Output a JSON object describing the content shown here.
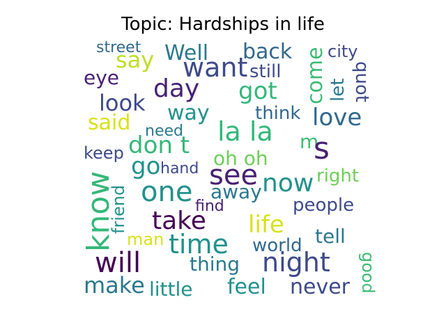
{
  "title": "Topic: Hardships in life",
  "words": [
    {
      "text": "street",
      "color": "#31688e"
    },
    {
      "text": "say",
      "color": "#bddf26"
    },
    {
      "text": "Well",
      "color": "#2a788e"
    },
    {
      "text": "back",
      "color": "#31688e"
    },
    {
      "text": "come",
      "color": "#3cbb75"
    },
    {
      "text": "city",
      "color": "#3e4a89"
    },
    {
      "text": "want",
      "color": "#3e4a89"
    },
    {
      "text": "still",
      "color": "#3e4a89"
    },
    {
      "text": "let",
      "color": "#2a788e"
    },
    {
      "text": "quot",
      "color": "#3e4a89"
    },
    {
      "text": "eye",
      "color": "#482173"
    },
    {
      "text": "day",
      "color": "#482173"
    },
    {
      "text": "got",
      "color": "#35b779"
    },
    {
      "text": "look",
      "color": "#3e4a89"
    },
    {
      "text": "love",
      "color": "#31688e"
    },
    {
      "text": "way",
      "color": "#21918c"
    },
    {
      "text": "think",
      "color": "#31688e"
    },
    {
      "text": "said",
      "color": "#d8e219"
    },
    {
      "text": "need",
      "color": "#2a788e"
    },
    {
      "text": "la la",
      "color": "#35b779"
    },
    {
      "text": "m",
      "color": "#3cbb75"
    },
    {
      "text": "s",
      "color": "#482173"
    },
    {
      "text": "don t",
      "color": "#35b779"
    },
    {
      "text": "keep",
      "color": "#3e4a89"
    },
    {
      "text": "oh oh",
      "color": "#6ece58"
    },
    {
      "text": "go",
      "color": "#21918c"
    },
    {
      "text": "hand",
      "color": "#3e4a89"
    },
    {
      "text": "see",
      "color": "#482173"
    },
    {
      "text": "right",
      "color": "#6ece58"
    },
    {
      "text": "know",
      "color": "#35b779"
    },
    {
      "text": "friend",
      "color": "#21918c"
    },
    {
      "text": "one",
      "color": "#21918c"
    },
    {
      "text": "away",
      "color": "#2a788e"
    },
    {
      "text": "now",
      "color": "#21918c"
    },
    {
      "text": "find",
      "color": "#482173"
    },
    {
      "text": "people",
      "color": "#3e4a89"
    },
    {
      "text": "take",
      "color": "#440154"
    },
    {
      "text": "life",
      "color": "#d8e219"
    },
    {
      "text": "man",
      "color": "#d8e219"
    },
    {
      "text": "time",
      "color": "#21918c"
    },
    {
      "text": "tell",
      "color": "#2a788e"
    },
    {
      "text": "world",
      "color": "#31688e"
    },
    {
      "text": "will",
      "color": "#440154"
    },
    {
      "text": "thing",
      "color": "#2a788e"
    },
    {
      "text": "night",
      "color": "#3e4a89"
    },
    {
      "text": "good",
      "color": "#3cbb75"
    },
    {
      "text": "make",
      "color": "#2a788e"
    },
    {
      "text": "little",
      "color": "#21918c"
    },
    {
      "text": "feel",
      "color": "#21918c"
    },
    {
      "text": "never",
      "color": "#3e4a89"
    }
  ]
}
